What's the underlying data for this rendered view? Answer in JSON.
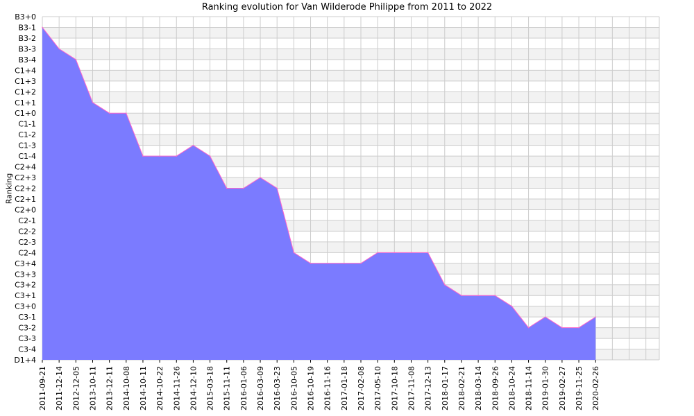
{
  "chart_data": {
    "type": "area",
    "title": "Ranking evolution for Van Wilderode Philippe from 2011 to 2022",
    "xlabel": "",
    "ylabel": "Ranking",
    "grid": true,
    "colors": {
      "fill": "#7b7bff",
      "line": "#ff66cc",
      "band": "#f2f2f2",
      "grid": "#cccccc"
    },
    "y_categories": [
      "D1+4",
      "C3-4",
      "C3-3",
      "C3-2",
      "C3-1",
      "C3+0",
      "C3+1",
      "C3+2",
      "C3+3",
      "C3+4",
      "C2-4",
      "C2-3",
      "C2-2",
      "C2-1",
      "C2+0",
      "C2+1",
      "C2+2",
      "C2+3",
      "C2+4",
      "C1-4",
      "C1-3",
      "C1-2",
      "C1-1",
      "C1+0",
      "C1+1",
      "C1+2",
      "C1+3",
      "C1+4",
      "B3-4",
      "B3-3",
      "B3-2",
      "B3-1",
      "B3+0"
    ],
    "x_ticks": [
      "2011-09-21",
      "2011-12-14",
      "2012-12-05",
      "2013-10-11",
      "2013-12-11",
      "2014-10-08",
      "2014-10-11",
      "2014-10-22",
      "2014-11-26",
      "2014-12-10",
      "2015-03-18",
      "2015-11-11",
      "2016-01-06",
      "2016-03-09",
      "2016-03-23",
      "2016-10-05",
      "2016-10-19",
      "2016-11-16",
      "2017-01-18",
      "2017-02-08",
      "2017-05-10",
      "2017-10-18",
      "2017-11-08",
      "2017-12-13",
      "2018-01-17",
      "2018-02-21",
      "2018-03-14",
      "2018-09-26",
      "2018-10-24",
      "2018-11-14",
      "2019-01-30",
      "2019-02-27",
      "2019-11-25",
      "2020-02-26"
    ],
    "series": [
      {
        "values": [
          [
            "2011-09-21",
            "B3-1"
          ],
          [
            "2011-12-14",
            "B3-3"
          ],
          [
            "2012-12-05",
            "B3-4"
          ],
          [
            "2013-10-11",
            "C1+1"
          ],
          [
            "2013-12-11",
            "C1+0"
          ],
          [
            "2014-10-08",
            "C1+0"
          ],
          [
            "2014-10-11",
            "C1-4"
          ],
          [
            "2014-10-22",
            "C1-4"
          ],
          [
            "2014-11-26",
            "C1-4"
          ],
          [
            "2014-12-10",
            "C1-3"
          ],
          [
            "2015-03-18",
            "C1-4"
          ],
          [
            "2015-11-11",
            "C2+2"
          ],
          [
            "2016-01-06",
            "C2+2"
          ],
          [
            "2016-03-09",
            "C2+3"
          ],
          [
            "2016-03-23",
            "C2+2"
          ],
          [
            "2016-10-05",
            "C2-4"
          ],
          [
            "2016-10-19",
            "C3+4"
          ],
          [
            "2016-11-16",
            "C3+4"
          ],
          [
            "2017-01-18",
            "C3+4"
          ],
          [
            "2017-02-08",
            "C3+4"
          ],
          [
            "2017-05-10",
            "C2-4"
          ],
          [
            "2017-10-18",
            "C2-4"
          ],
          [
            "2017-11-08",
            "C2-4"
          ],
          [
            "2017-12-13",
            "C2-4"
          ],
          [
            "2018-01-17",
            "C3+2"
          ],
          [
            "2018-02-21",
            "C3+1"
          ],
          [
            "2018-03-14",
            "C3+1"
          ],
          [
            "2018-09-26",
            "C3+1"
          ],
          [
            "2018-10-24",
            "C3+0"
          ],
          [
            "2018-11-14",
            "C3-2"
          ],
          [
            "2019-01-30",
            "C3-1"
          ],
          [
            "2019-02-27",
            "C3-2"
          ],
          [
            "2019-11-25",
            "C3-2"
          ],
          [
            "2020-02-26",
            "C3-1"
          ]
        ]
      }
    ]
  }
}
